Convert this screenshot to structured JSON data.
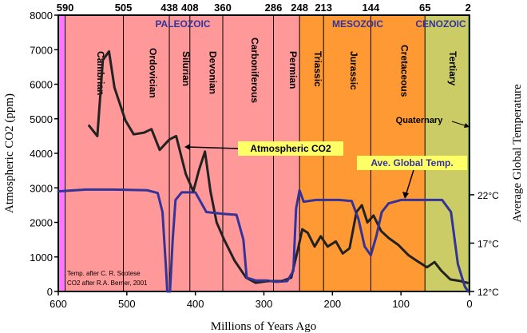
{
  "chart_data": {
    "type": "line",
    "title": "",
    "xlabel": "Millions of Years Ago",
    "ylabel": "Atmospheric CO2 (ppm)",
    "y2label": "Average Global Temperature",
    "xlim": [
      600,
      0
    ],
    "ylim": [
      0,
      8000
    ],
    "x_ticks": [
      "600",
      "500",
      "400",
      "300",
      "200",
      "100",
      "0"
    ],
    "y_ticks": [
      "0",
      "1000",
      "2000",
      "3000",
      "4000",
      "5000",
      "6000",
      "7000",
      "8000"
    ],
    "y2_ticks": [
      {
        "label": "12°C",
        "level": 0
      },
      {
        "label": "17°C",
        "level": 1400
      },
      {
        "label": "22°C",
        "level": 2800
      }
    ],
    "boundary_ages": [
      "590",
      "505",
      "438",
      "408",
      "360",
      "286",
      "248",
      "213",
      "144",
      "65",
      "2"
    ],
    "eras": [
      {
        "name": "PALEOZOIC",
        "from": 590,
        "to": 248,
        "color": "#ff9898"
      },
      {
        "name": "MESOZOIC",
        "from": 248,
        "to": 65,
        "color": "#ff9933"
      },
      {
        "name": "CENOZOIC",
        "from": 65,
        "to": 2,
        "color": "#cccc66"
      }
    ],
    "pre_cambrian_color": "#ff77ff",
    "quaternary_color": "#339933",
    "periods": [
      {
        "name": "Cambrian",
        "from": 590,
        "to": 505
      },
      {
        "name": "Ordovician",
        "from": 505,
        "to": 438
      },
      {
        "name": "Silurian",
        "from": 438,
        "to": 408
      },
      {
        "name": "Devonian",
        "from": 408,
        "to": 360
      },
      {
        "name": "Carboniferous",
        "from": 360,
        "to": 286
      },
      {
        "name": "Permian",
        "from": 286,
        "to": 248
      },
      {
        "name": "Triassic",
        "from": 248,
        "to": 213
      },
      {
        "name": "Jurassic",
        "from": 213,
        "to": 144
      },
      {
        "name": "Cretaceous",
        "from": 144,
        "to": 65
      },
      {
        "name": "Tertiary",
        "from": 65,
        "to": 2
      }
    ],
    "series": [
      {
        "name": "Atmospheric CO2",
        "color": "#222222",
        "points": [
          [
            555,
            4800
          ],
          [
            543,
            4500
          ],
          [
            535,
            6700
          ],
          [
            526,
            6950
          ],
          [
            518,
            5900
          ],
          [
            502,
            4950
          ],
          [
            490,
            4550
          ],
          [
            475,
            4600
          ],
          [
            464,
            4700
          ],
          [
            452,
            4100
          ],
          [
            438,
            4400
          ],
          [
            428,
            4500
          ],
          [
            414,
            3400
          ],
          [
            403,
            2900
          ],
          [
            395,
            3500
          ],
          [
            386,
            4050
          ],
          [
            378,
            2900
          ],
          [
            369,
            2000
          ],
          [
            358,
            1500
          ],
          [
            343,
            900
          ],
          [
            326,
            400
          ],
          [
            312,
            250
          ],
          [
            294,
            300
          ],
          [
            274,
            300
          ],
          [
            260,
            400
          ],
          [
            250,
            1250
          ],
          [
            244,
            1800
          ],
          [
            236,
            1700
          ],
          [
            226,
            1300
          ],
          [
            217,
            1600
          ],
          [
            207,
            1300
          ],
          [
            195,
            1450
          ],
          [
            185,
            1100
          ],
          [
            175,
            1250
          ],
          [
            165,
            2300
          ],
          [
            157,
            2500
          ],
          [
            149,
            2000
          ],
          [
            140,
            2200
          ],
          [
            129,
            1750
          ],
          [
            118,
            1550
          ],
          [
            104,
            1350
          ],
          [
            89,
            1050
          ],
          [
            74,
            850
          ],
          [
            62,
            700
          ],
          [
            51,
            850
          ],
          [
            41,
            600
          ],
          [
            28,
            350
          ],
          [
            13,
            300
          ],
          [
            3,
            250
          ]
        ]
      },
      {
        "name": "Ave. Global Temp.",
        "color": "#333399",
        "points": [
          [
            600,
            2900
          ],
          [
            560,
            2950
          ],
          [
            520,
            2950
          ],
          [
            470,
            2930
          ],
          [
            455,
            2850
          ],
          [
            448,
            2300
          ],
          [
            443,
            700
          ],
          [
            441,
            0
          ],
          [
            437,
            0
          ],
          [
            433,
            1500
          ],
          [
            429,
            2650
          ],
          [
            420,
            2870
          ],
          [
            400,
            2870
          ],
          [
            384,
            2300
          ],
          [
            360,
            2250
          ],
          [
            340,
            2220
          ],
          [
            330,
            1500
          ],
          [
            325,
            400
          ],
          [
            312,
            320
          ],
          [
            296,
            320
          ],
          [
            282,
            280
          ],
          [
            266,
            300
          ],
          [
            257,
            600
          ],
          [
            253,
            2400
          ],
          [
            248,
            2930
          ],
          [
            242,
            2600
          ],
          [
            224,
            2650
          ],
          [
            190,
            2650
          ],
          [
            172,
            2620
          ],
          [
            162,
            2100
          ],
          [
            153,
            1300
          ],
          [
            144,
            1050
          ],
          [
            136,
            1600
          ],
          [
            128,
            2300
          ],
          [
            118,
            2550
          ],
          [
            100,
            2650
          ],
          [
            80,
            2650
          ],
          [
            62,
            2650
          ],
          [
            40,
            2650
          ],
          [
            27,
            2300
          ],
          [
            17,
            800
          ],
          [
            7,
            150
          ],
          [
            2,
            0
          ]
        ]
      }
    ],
    "annotations": {
      "co2_label": "Atmospheric CO2",
      "temp_label": "Ave. Global Temp.",
      "quaternary_label": "Quaternary",
      "credit_line1": "Temp. after C. R. Scotese",
      "credit_line2": "CO2 after R.A. Berner, 2001"
    }
  }
}
